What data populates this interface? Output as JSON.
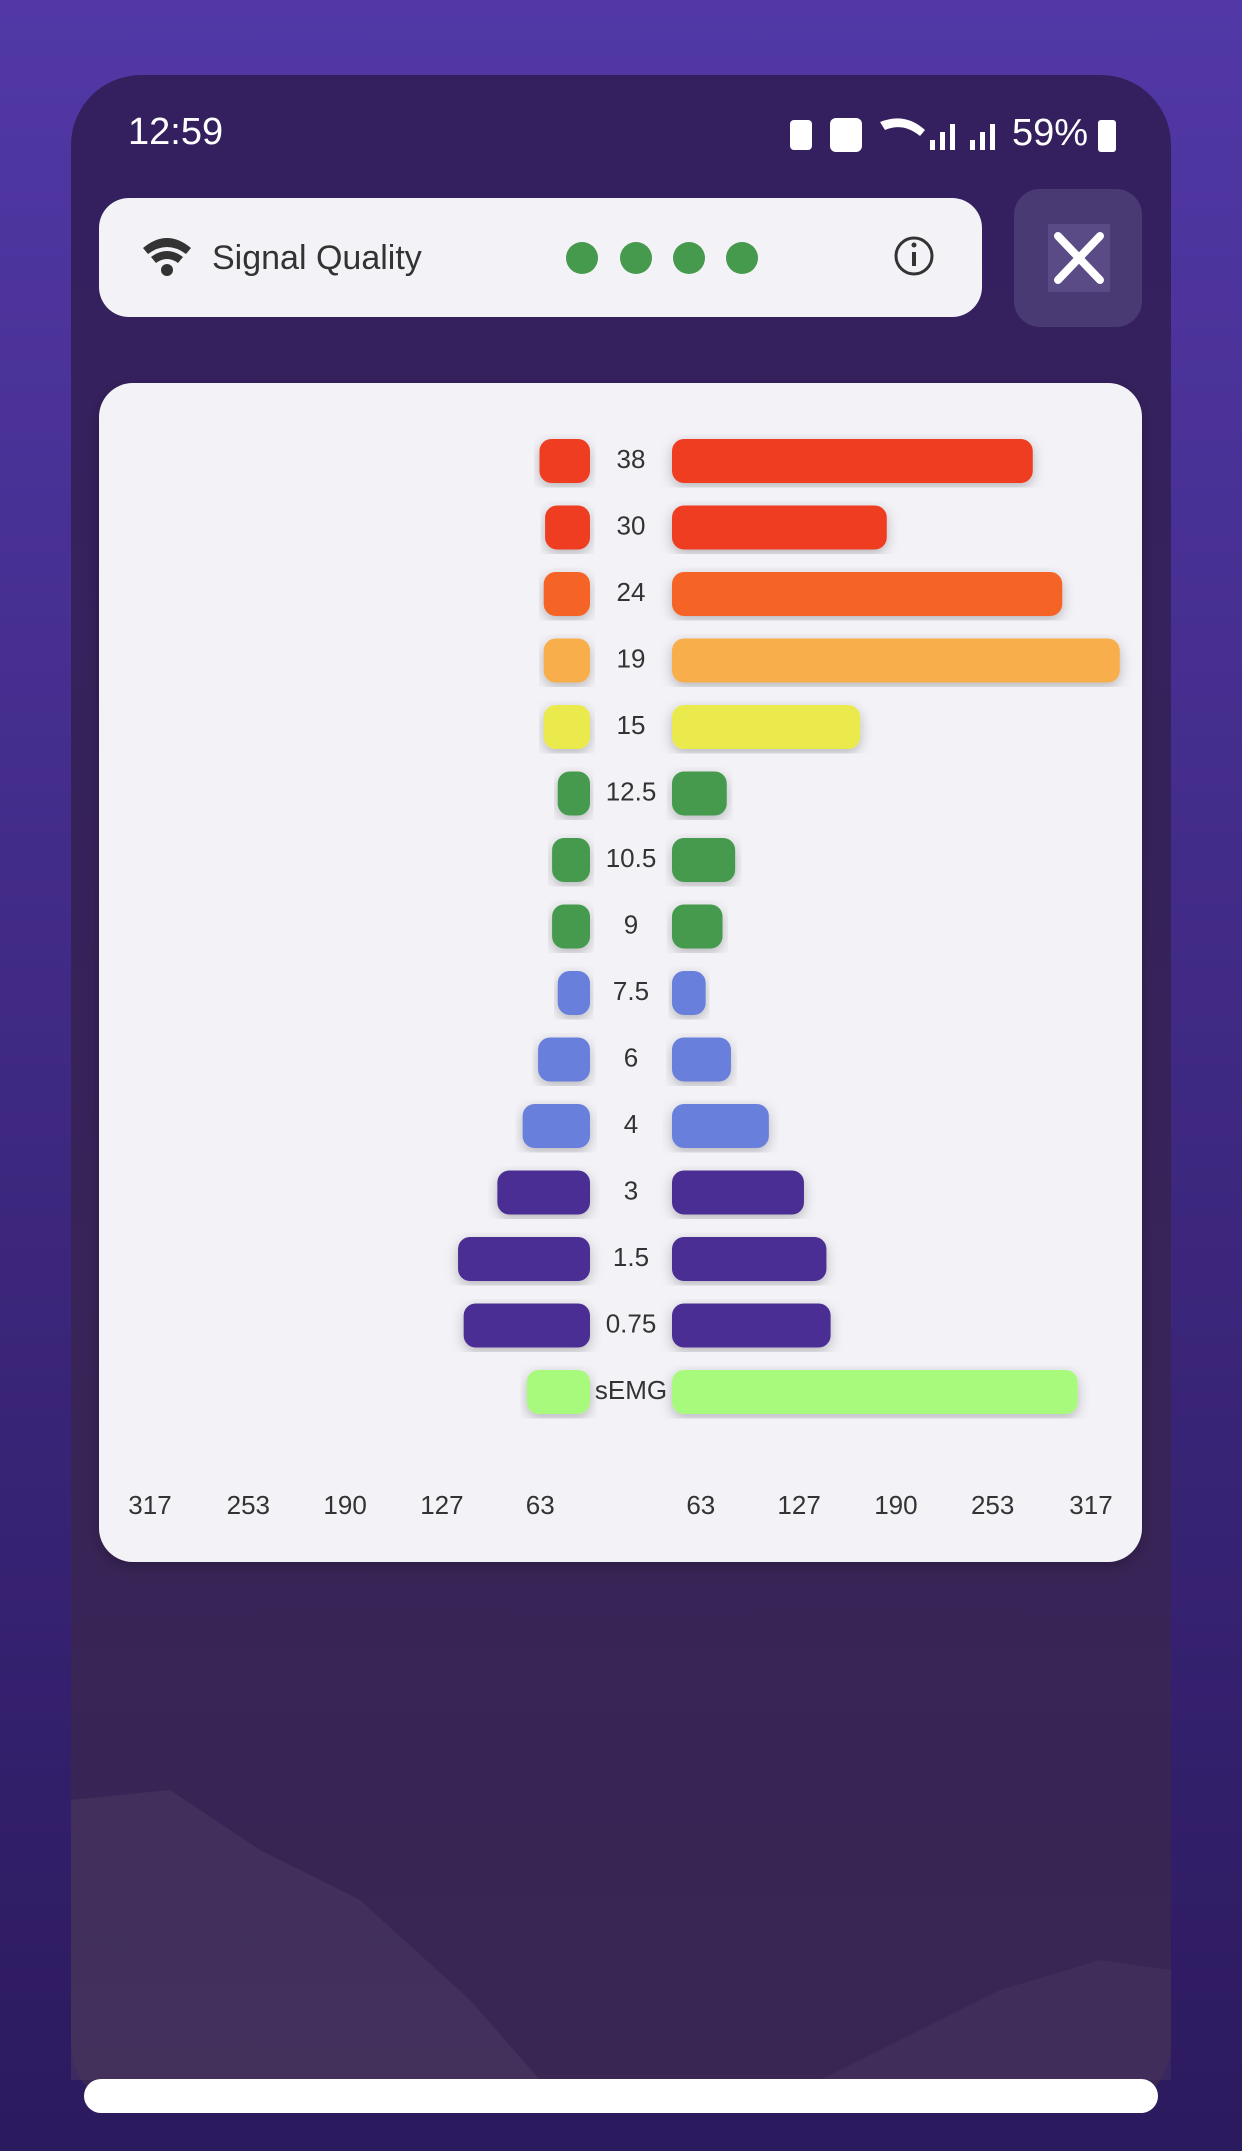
{
  "status_bar": {
    "time": "12:59",
    "battery": "59%"
  },
  "signal_quality": {
    "label": "Signal Quality"
  },
  "chart_data": {
    "type": "butterfly",
    "categories": [
      "38",
      "30",
      "24",
      "19",
      "15",
      "12.5",
      "10.5",
      "9",
      "7.5",
      "6",
      "4",
      "3",
      "1.5",
      "0.75",
      "sEMG"
    ],
    "colors": [
      "#ef3d22",
      "#ef3d22",
      "#f66427",
      "#f8ae4c",
      "#eaea4e",
      "#459a4d",
      "#459a4d",
      "#459a4d",
      "#687fdc",
      "#687fdc",
      "#687fdc",
      "#4b2d93",
      "#4b2d93",
      "#4b2d93",
      "#a8fa7c"
    ],
    "series": [
      {
        "values": [
          36,
          32,
          33,
          33,
          33,
          23,
          27,
          27,
          23,
          37,
          48,
          66,
          94,
          90,
          45
        ]
      },
      {
        "values": [
          257,
          153,
          278,
          319,
          134,
          39,
          45,
          36,
          24,
          42,
          69,
          94,
          110,
          113,
          289
        ]
      }
    ],
    "xlim": [
      0,
      317
    ],
    "xticks": [
      63,
      127,
      190,
      253,
      317
    ]
  }
}
